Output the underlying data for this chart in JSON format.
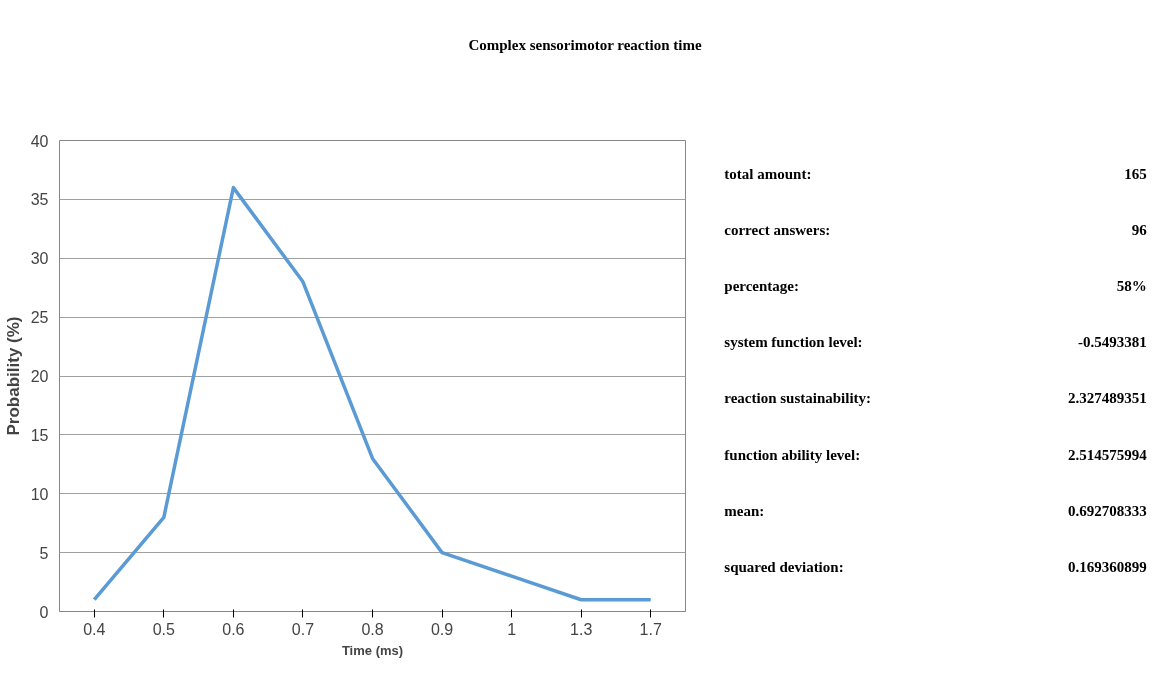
{
  "chart_data": [
    {
      "type": "line",
      "title": "Complex sensorimotor reaction time",
      "xlabel": "Time (ms)",
      "ylabel": "Probability (%)",
      "categories": [
        "0.4",
        "0.5",
        "0.6",
        "0.7",
        "0.8",
        "0.9",
        "1",
        "1.3",
        "1.7"
      ],
      "series": [
        {
          "color": "#5b9bd5",
          "values": [
            1,
            8,
            36,
            28,
            13,
            5,
            3,
            1,
            1
          ]
        }
      ],
      "ylim": [
        0,
        40
      ],
      "yticks": [
        0,
        5,
        10,
        15,
        20,
        25,
        30,
        35,
        40
      ],
      "grid": "y"
    },
    {
      "type": "other",
      "annotations": [
        "total amount:",
        "165",
        "correct answers:",
        "96",
        "percentage:",
        "58%",
        "system function level:",
        "-0.5493381",
        "reaction sustainability:",
        "2.327489351",
        "function ability level:",
        "2.514575994",
        "mean:",
        "0.692708333",
        "squared deviation:",
        "0.169360899"
      ]
    }
  ]
}
